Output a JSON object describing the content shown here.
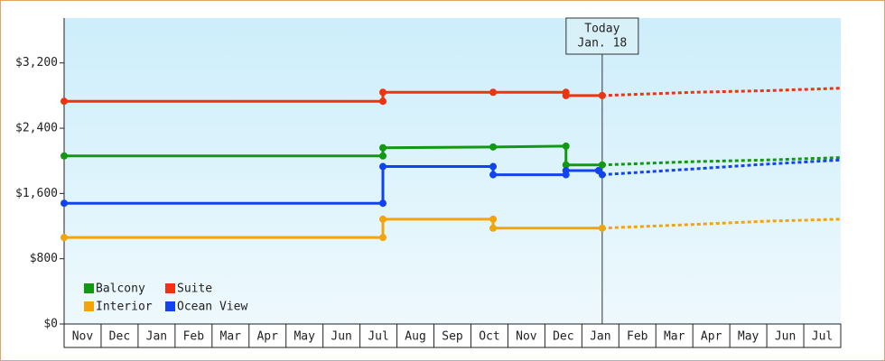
{
  "chart_data": {
    "type": "line",
    "x_categories": [
      "Nov",
      "Dec",
      "Jan",
      "Feb",
      "Mar",
      "Apr",
      "May",
      "Jun",
      "Jul",
      "Aug",
      "Sep",
      "Oct",
      "Nov",
      "Dec",
      "Jan",
      "Feb",
      "Mar",
      "Apr",
      "May",
      "Jun",
      "Jul"
    ],
    "xlim": [
      0,
      21
    ],
    "ylim": [
      0,
      3750
    ],
    "yticks": [
      {
        "value": 0,
        "label": "$0"
      },
      {
        "value": 800,
        "label": "$800"
      },
      {
        "value": 1600,
        "label": "$1,600"
      },
      {
        "value": 2400,
        "label": "$2,400"
      },
      {
        "value": 3200,
        "label": "$3,200"
      }
    ],
    "grid": false,
    "legend": "lower-left",
    "today": {
      "x": 14.55,
      "label": "Today",
      "date": "Jan. 18"
    },
    "forecast_x": [
      14.55,
      17,
      19,
      21
    ],
    "series": [
      {
        "name": "Balcony",
        "color": "#119911",
        "x": [
          0,
          8.62,
          8.62,
          11.6,
          13.57,
          13.57,
          14.55
        ],
        "values": [
          2060,
          2060,
          2160,
          2170,
          2180,
          1950,
          1950
        ],
        "forecast": [
          1950,
          1990,
          2010,
          2040
        ]
      },
      {
        "name": "Suite",
        "color": "#ee3311",
        "x": [
          0,
          8.62,
          8.62,
          11.6,
          13.57,
          13.57,
          14.55
        ],
        "values": [
          2730,
          2730,
          2840,
          2840,
          2840,
          2800,
          2800
        ],
        "forecast": [
          2800,
          2840,
          2860,
          2890
        ]
      },
      {
        "name": "Interior",
        "color": "#f5a30a",
        "x": [
          0,
          8.62,
          8.62,
          11.6,
          11.6,
          14.55
        ],
        "values": [
          1060,
          1060,
          1285,
          1285,
          1175,
          1175
        ],
        "forecast": [
          1175,
          1220,
          1260,
          1285
        ]
      },
      {
        "name": "Ocean View",
        "color": "#1144ee",
        "x": [
          0,
          8.62,
          8.62,
          11.6,
          11.6,
          13.57,
          13.57,
          14.45,
          14.55
        ],
        "values": [
          1480,
          1480,
          1930,
          1930,
          1830,
          1830,
          1880,
          1880,
          1830
        ],
        "forecast": [
          1830,
          1900,
          1960,
          2010
        ]
      }
    ]
  }
}
